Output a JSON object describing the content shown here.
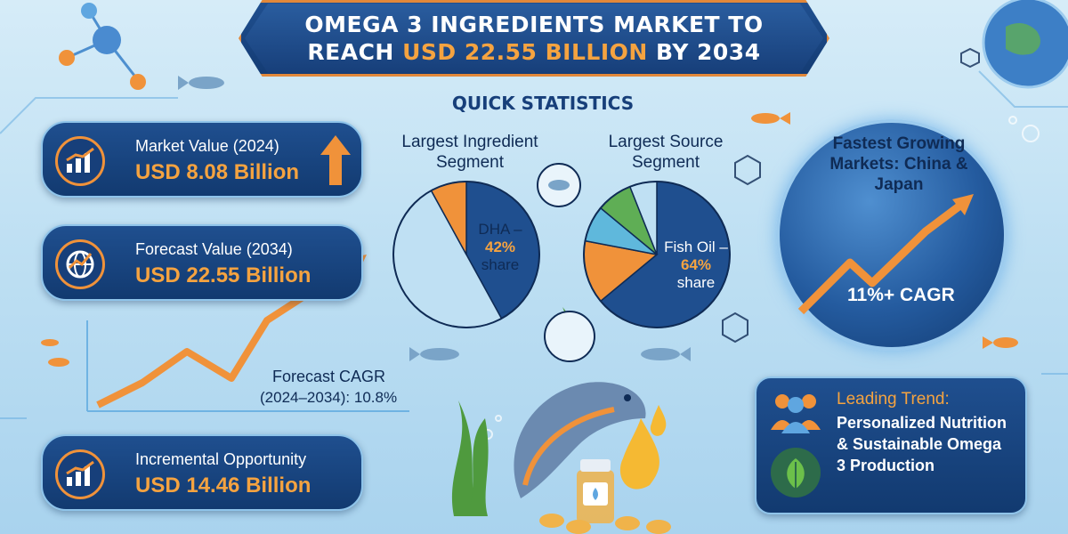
{
  "title": {
    "line1": "OMEGA 3 INGREDIENTS MARKET TO",
    "line2_prefix": "REACH ",
    "line2_highlight": "USD 22.55 BILLION",
    "line2_suffix": " BY 2034"
  },
  "quick_statistics": {
    "header": "QUICK STATISTICS"
  },
  "stats": {
    "market_value": {
      "label": "Market Value (2024)",
      "value": "USD 8.08 Billion",
      "icon": "bar-chart-up-icon"
    },
    "forecast_value": {
      "label": "Forecast Value (2034)",
      "value": "USD 22.55 Billion",
      "icon": "globe-growth-icon"
    },
    "incremental": {
      "label": "Incremental Opportunity",
      "value": "USD 14.46 Billion",
      "icon": "bar-chart-up-icon"
    }
  },
  "cagr_note": {
    "line1": "Forecast CAGR",
    "line2": "(2024–2034): 10.8%"
  },
  "chart_data": [
    {
      "type": "pie",
      "title": "Largest Ingredient Segment",
      "highlight": {
        "label": "DHA –",
        "percent": "42%",
        "suffix": "share",
        "value": 42
      },
      "slices": [
        {
          "value": 42,
          "color": "#1f4f8f"
        },
        {
          "value": 50,
          "color": "#bfe0f3"
        },
        {
          "value": 8,
          "color": "#f0923a"
        }
      ]
    },
    {
      "type": "pie",
      "title": "Largest Source Segment",
      "highlight": {
        "label": "Fish Oil –",
        "percent": "64%",
        "suffix": "share",
        "value": 64
      },
      "slices": [
        {
          "value": 64,
          "color": "#1f4f8f"
        },
        {
          "value": 14,
          "color": "#f0923a"
        },
        {
          "value": 8,
          "color": "#5fb8dc"
        },
        {
          "value": 8,
          "color": "#5fae55"
        },
        {
          "value": 6,
          "color": "#bfe0f3"
        }
      ]
    }
  ],
  "globe": {
    "title": "Fastest Growing Markets: China & Japan",
    "cagr": "11%+ CAGR"
  },
  "trend": {
    "title": "Leading Trend:",
    "body": "Personalized Nutrition & Sustainable Omega 3 Production",
    "icons": [
      "people-icon",
      "leaves-icon"
    ]
  },
  "colors": {
    "navy": "#1f4f8f",
    "orange": "#f5a340",
    "sky": "#bfe0f3"
  }
}
